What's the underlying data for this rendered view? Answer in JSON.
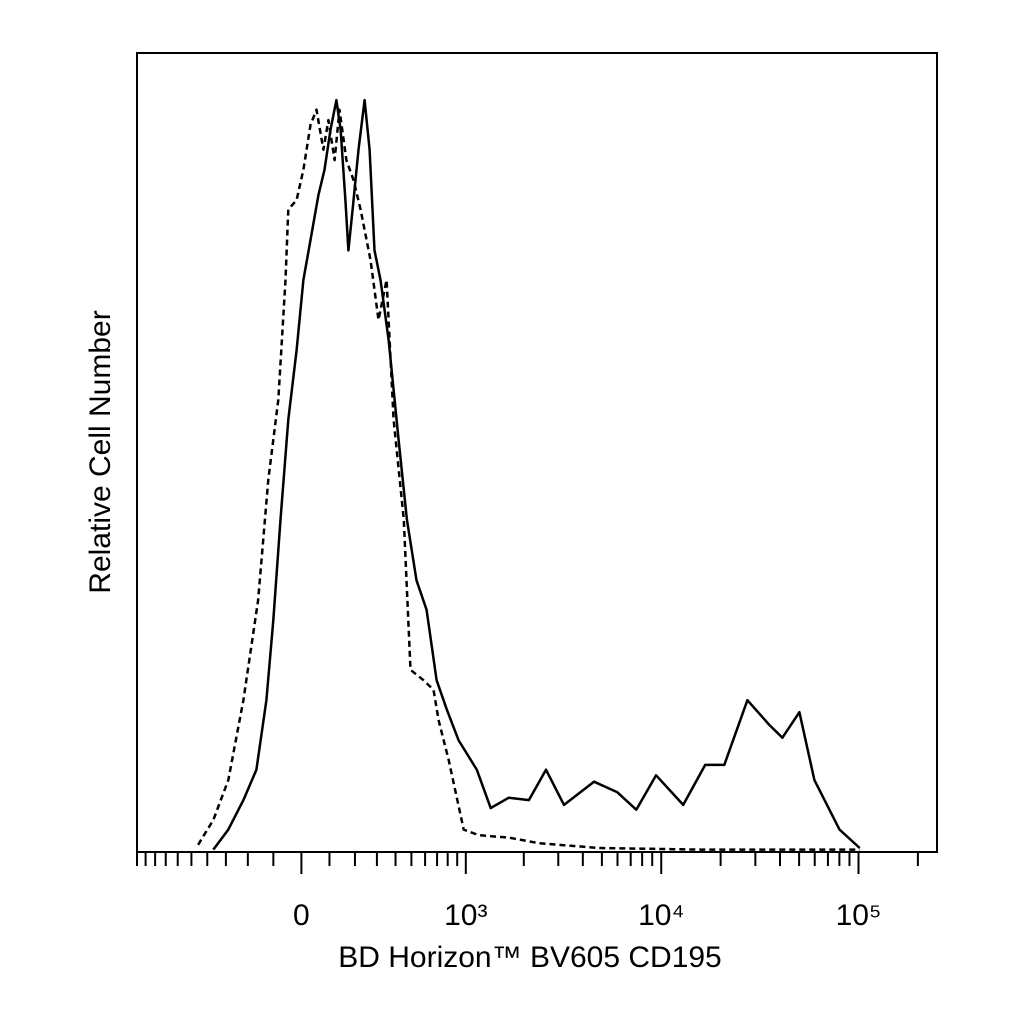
{
  "chart_data": {
    "type": "histogram-overlay",
    "xlabel": "BD Horizon™ BV605 CD195",
    "ylabel": "Relative Cell Number",
    "xscale": {
      "type": "arcsinh",
      "cofactor": 300
    },
    "xlim": [
      -1000,
      250000
    ],
    "ylim": [
      0,
      100
    ],
    "xticks": [
      0,
      {
        "value": 1000,
        "label": "10³"
      },
      {
        "value": 10000,
        "label": "10⁴"
      },
      {
        "value": 100000,
        "label": "10⁵"
      }
    ],
    "xminorticks": [
      -1000,
      -900,
      -800,
      -700,
      -600,
      -500,
      -400,
      -300,
      -200,
      -100,
      100,
      200,
      300,
      400,
      500,
      600,
      700,
      800,
      900,
      2000,
      3000,
      4000,
      5000,
      6000,
      7000,
      8000,
      9000,
      20000,
      30000,
      40000,
      50000,
      60000,
      70000,
      80000,
      90000,
      200000
    ],
    "series": [
      {
        "color": "#000000",
        "style": "solid",
        "x": [
          -366,
          -288,
          -219,
          -165,
          -126,
          -100,
          -74,
          -46,
          -17,
          7,
          32,
          60,
          82,
          104,
          126,
          142,
          161,
          173,
          190,
          215,
          242,
          265,
          288,
          318,
          361,
          418,
          470,
          536,
          612,
          696,
          792,
          915,
          1143,
          1350,
          1674,
          2124,
          2598,
          3207,
          4560,
          5970,
          7470,
          9420,
          12930,
          16710,
          20880,
          27330,
          35340,
          41130,
          50190,
          59790,
          80100,
          101400
        ],
        "values": [
          0.3,
          2.8,
          6.5,
          10.3,
          19.0,
          29.0,
          41.6,
          54.1,
          62.8,
          71.6,
          76.6,
          82.2,
          85.4,
          90.4,
          94.1,
          90.4,
          81.6,
          75.3,
          80.4,
          87.9,
          94.1,
          87.9,
          75.3,
          71.6,
          64.1,
          51.6,
          41.6,
          34.0,
          30.3,
          21.5,
          17.8,
          14.0,
          10.3,
          5.5,
          6.8,
          6.5,
          10.3,
          5.9,
          8.8,
          7.5,
          5.3,
          9.6,
          5.9,
          10.9,
          10.9,
          19.0,
          15.9,
          14.3,
          17.5,
          9.0,
          2.8,
          0.5
        ]
      },
      {
        "color": "#000000",
        "style": "dashed",
        "x": [
          -456,
          -366,
          -288,
          -219,
          -158,
          -119,
          -82,
          -56,
          -46,
          -17,
          7,
          32,
          53,
          78,
          96,
          119,
          138,
          165,
          194,
          224,
          269,
          308,
          350,
          389,
          450,
          494,
          588,
          669,
          714,
          810,
          975,
          1170,
          1674,
          2388,
          4830,
          15600,
          101400
        ],
        "values": [
          0.9,
          4.0,
          9.0,
          19.0,
          31.5,
          46.6,
          56.6,
          71.6,
          80.4,
          81.6,
          85.4,
          91.0,
          92.9,
          87.9,
          91.6,
          86.6,
          92.9,
          86.6,
          84.1,
          80.4,
          74.1,
          66.6,
          71.6,
          54.1,
          41.6,
          22.8,
          21.5,
          20.3,
          16.5,
          11.5,
          2.8,
          2.1,
          1.8,
          1.1,
          0.5,
          0.3,
          0.3
        ]
      }
    ]
  }
}
